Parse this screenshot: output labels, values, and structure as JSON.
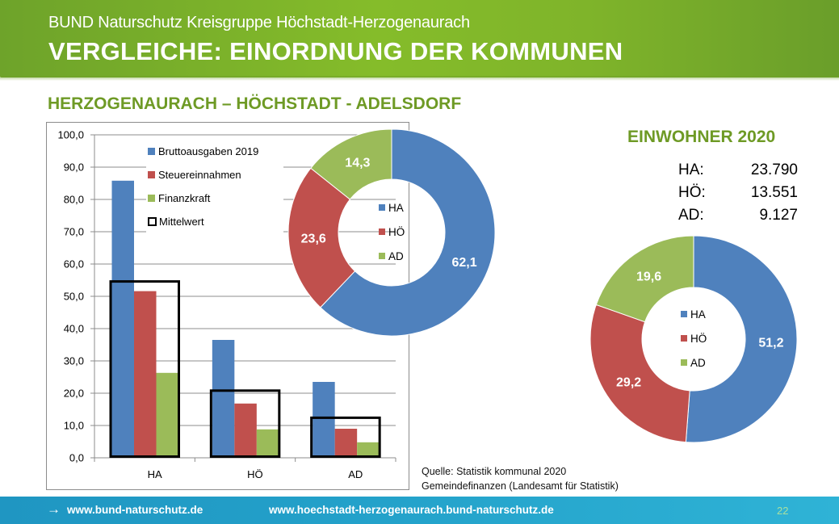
{
  "header": {
    "org_title": "BUND Naturschutz Kreisgruppe Höchstadt-Herzogenaurach",
    "page_title": "VERGLEICHE: EINORDNUNG DER KOMMUNEN"
  },
  "section_title": "HERZOGENAURACH – HÖCHSTADT - ADELSDORF",
  "colors": {
    "blue": "#4f81bd",
    "red": "#c0504d",
    "green": "#9bbb59",
    "title_green": "#6e9a25",
    "footer_blue": "#24a3cb"
  },
  "chart_data": [
    {
      "type": "bar",
      "title": "",
      "xlabel": "",
      "ylabel": "",
      "categories": [
        "HA",
        "HÖ",
        "AD"
      ],
      "series": [
        {
          "name": "Bruttoausgaben 2019",
          "color": "#4f81bd",
          "values": [
            85.8,
            36.5,
            23.5
          ]
        },
        {
          "name": "Steuereinnahmen",
          "color": "#c0504d",
          "values": [
            51.6,
            16.8,
            9.0
          ]
        },
        {
          "name": "Finanzkraft",
          "color": "#9bbb59",
          "values": [
            26.3,
            8.8,
            4.8
          ]
        },
        {
          "name": "Mittelwert",
          "style": "outline-box",
          "values": [
            54.6,
            20.8,
            12.4
          ]
        }
      ],
      "ylim": [
        0,
        100
      ],
      "yticks": [
        "0,0",
        "10,0",
        "20,0",
        "30,0",
        "40,0",
        "50,0",
        "60,0",
        "70,0",
        "80,0",
        "90,0",
        "100,0"
      ],
      "grid": true,
      "legend": "top-left"
    },
    {
      "type": "pie",
      "variant": "donut",
      "labels": [
        "HA",
        "HÖ",
        "AD"
      ],
      "values": [
        62.1,
        23.6,
        14.3
      ],
      "value_labels": [
        "62,1",
        "23,6",
        "14,3"
      ],
      "colors": [
        "#4f81bd",
        "#c0504d",
        "#9bbb59"
      ],
      "legend": "center"
    },
    {
      "type": "pie",
      "variant": "donut",
      "title": "EINWOHNER 2020",
      "labels": [
        "HA",
        "HÖ",
        "AD"
      ],
      "values": [
        51.2,
        29.2,
        19.6
      ],
      "value_labels": [
        "51,2",
        "29,2",
        "19,6"
      ],
      "colors": [
        "#4f81bd",
        "#c0504d",
        "#9bbb59"
      ],
      "legend": "center"
    }
  ],
  "einwohner": {
    "title": "EINWOHNER 2020",
    "rows": [
      {
        "label": "HA:",
        "value": "23.790"
      },
      {
        "label": "HÖ:",
        "value": "13.551"
      },
      {
        "label": "AD:",
        "value": "9.127"
      }
    ]
  },
  "source": {
    "line1": "Quelle: Statistik kommunal  2020",
    "line2": "Gemeindefinanzen (Landesamt für Statistik)"
  },
  "footer": {
    "arrow_icon": "arrow-right-icon",
    "link1": "www.bund-naturschutz.de",
    "link2": "www.hoechstadt-herzogenaurach.bund-naturschutz.de",
    "page_number": "22"
  }
}
